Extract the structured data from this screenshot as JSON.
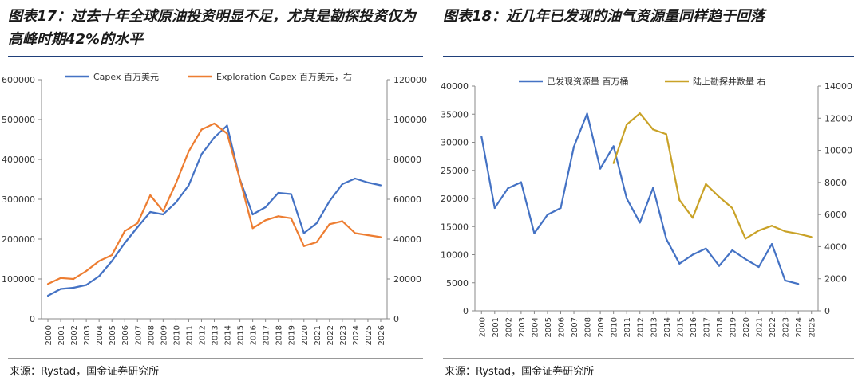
{
  "left": {
    "title": "图表17：过去十年全球原油投资明显不足，尤其是勘探投资仅为高峰时期42%的水平",
    "source": "来源：Rystad，国金证券研究所"
  },
  "right": {
    "title": "图表18：近几年已发现的油气资源量同样趋于回落",
    "source": "来源：Rystad，国金证券研究所"
  },
  "chart_data": [
    {
      "type": "line",
      "title": "",
      "categories": [
        "2000",
        "2001",
        "2002",
        "2003",
        "2004",
        "2005",
        "2006",
        "2007",
        "2008",
        "2009",
        "2010",
        "2011",
        "2012",
        "2013",
        "2014",
        "2015",
        "2016",
        "2017",
        "2018",
        "2019",
        "2020",
        "2021",
        "2022",
        "2023",
        "2024",
        "2025",
        "2026"
      ],
      "y_left": {
        "min": 0,
        "max": 600000,
        "ticks": [
          "0",
          "100000",
          "200000",
          "300000",
          "400000",
          "500000",
          "600000"
        ]
      },
      "y_right": {
        "min": 0,
        "max": 120000,
        "ticks": [
          "0",
          "20000",
          "40000",
          "60000",
          "80000",
          "100000",
          "120000"
        ]
      },
      "legend_position": "top",
      "series": [
        {
          "name": "Capex 百万美元",
          "axis": "left",
          "color": "#4472C4",
          "values": [
            58000,
            75000,
            78000,
            85000,
            107000,
            145000,
            190000,
            230000,
            268000,
            262000,
            292000,
            335000,
            413000,
            455000,
            485000,
            350000,
            262000,
            280000,
            316000,
            313000,
            215000,
            240000,
            295000,
            338000,
            352000,
            342000,
            335000
          ]
        },
        {
          "name": "Exploration Capex 百万美元，右",
          "axis": "right",
          "color": "#ED7D31",
          "values": [
            17500,
            20500,
            20000,
            24000,
            29000,
            32000,
            44000,
            48000,
            62000,
            54000,
            68000,
            84000,
            95000,
            98000,
            93000,
            70000,
            45500,
            49500,
            51500,
            50500,
            36500,
            38500,
            47500,
            49000,
            43000,
            42000,
            41000
          ]
        }
      ]
    },
    {
      "type": "line",
      "title": "",
      "categories": [
        "2000",
        "2001",
        "2002",
        "2003",
        "2004",
        "2005",
        "2006",
        "2007",
        "2008",
        "2009",
        "2010",
        "2011",
        "2012",
        "2013",
        "2014",
        "2015",
        "2016",
        "2017",
        "2018",
        "2019",
        "2020",
        "2021",
        "2022",
        "2023",
        "2024",
        "2025"
      ],
      "y_left": {
        "min": 0,
        "max": 40000,
        "ticks": [
          "0",
          "5000",
          "10000",
          "15000",
          "20000",
          "25000",
          "30000",
          "35000",
          "40000"
        ]
      },
      "y_right": {
        "min": 0,
        "max": 14000,
        "ticks": [
          "0",
          "2000",
          "4000",
          "6000",
          "8000",
          "10000",
          "12000",
          "14000"
        ]
      },
      "legend_position": "top",
      "series": [
        {
          "name": "已发现资源量 百万桶",
          "axis": "left",
          "color": "#4472C4",
          "values": [
            31000,
            18300,
            21800,
            22900,
            13800,
            17100,
            18300,
            29200,
            35100,
            25300,
            29300,
            20000,
            15700,
            21900,
            12800,
            8400,
            10000,
            11100,
            8000,
            10800,
            9200,
            7800,
            11900,
            5400,
            4800,
            null
          ]
        },
        {
          "name": "陆上勘探井数量 右",
          "axis": "right",
          "color": "#C9A227",
          "values": [
            null,
            null,
            null,
            null,
            null,
            null,
            null,
            null,
            null,
            null,
            9200,
            11600,
            12300,
            11300,
            11000,
            6900,
            5800,
            7900,
            7100,
            6400,
            4500,
            5000,
            5300,
            4950,
            4800,
            4600
          ]
        }
      ]
    }
  ]
}
